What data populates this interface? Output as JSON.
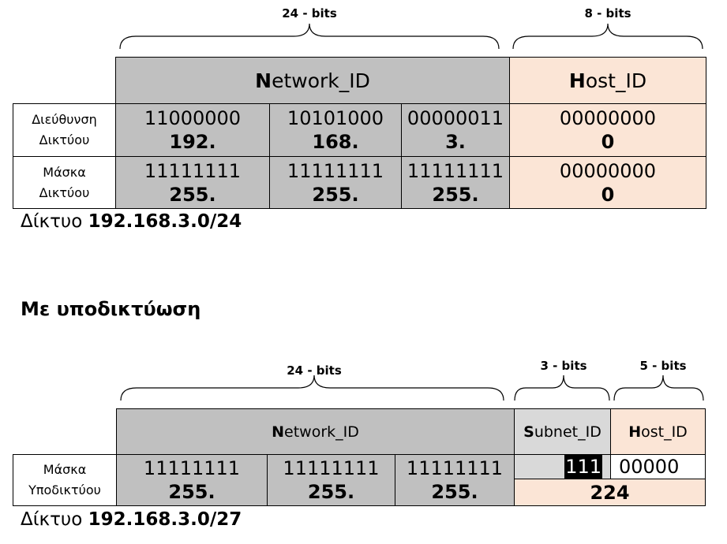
{
  "colors": {
    "network": "#c0c0c0",
    "host": "#fbe5d6",
    "subnet": "#d9d9d9"
  },
  "top": {
    "brace_network": "24 - bits",
    "brace_host": "8 - bits",
    "network_header_first": "N",
    "network_header_rest": "etwork_ID",
    "host_header_first": "H",
    "host_header_rest": "ost_ID",
    "rows": [
      {
        "label_line1": "Διεύθυνση",
        "label_line2": "Δικτύου",
        "cells": [
          {
            "bin": "11000000",
            "dec": "192."
          },
          {
            "bin": "10101000",
            "dec": "168."
          },
          {
            "bin": "00000011",
            "dec": "3."
          },
          {
            "bin": "00000000",
            "dec": "0"
          }
        ]
      },
      {
        "label_line1": "Μάσκα",
        "label_line2": "Δικτύου",
        "cells": [
          {
            "bin": "11111111",
            "dec": "255."
          },
          {
            "bin": "11111111",
            "dec": "255."
          },
          {
            "bin": "11111111",
            "dec": "255."
          },
          {
            "bin": "00000000",
            "dec": "0"
          }
        ]
      }
    ],
    "caption_prefix": "Δίκτυο ",
    "caption_value": "192.168.3.0/24"
  },
  "section_title": "Με υποδικτύωση",
  "bottom": {
    "brace_network": "24 - bits",
    "brace_subnet": "3 - bits",
    "brace_host": "5 - bits",
    "network_header_first": "N",
    "network_header_rest": "etwork_ID",
    "subnet_header_first": "S",
    "subnet_header_rest": "ubnet_ID",
    "host_header_first": "H",
    "host_header_rest": "ost_ID",
    "row": {
      "label_line1": "Μάσκα",
      "label_line2": "Υποδικτύου",
      "cells": [
        {
          "bin": "11111111",
          "dec": "255."
        },
        {
          "bin": "11111111",
          "dec": "255."
        },
        {
          "bin": "11111111",
          "dec": "255."
        }
      ],
      "subnet_bin": "111",
      "host_bin": "00000",
      "last_dec": "224"
    },
    "caption_prefix": "Δίκτυο ",
    "caption_value": "192.168.3.0/27"
  }
}
